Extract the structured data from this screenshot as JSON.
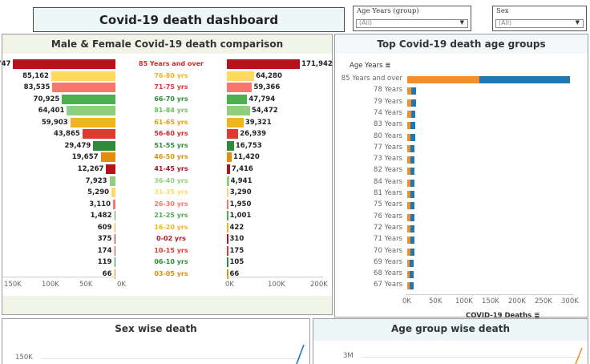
{
  "header": {
    "title": "Covid-19 death dashboard"
  },
  "filters": [
    {
      "label": "Age Years (group)",
      "value": "(All)"
    },
    {
      "label": "Sex",
      "value": "(All)"
    }
  ],
  "comparison": {
    "title": "Male & Female Covid-19 death comparison",
    "rows": [
      {
        "label": "85 Years and over",
        "male": "135,747",
        "female": "171,942",
        "m": 135747,
        "f": 171942,
        "color": "#b5121b"
      },
      {
        "label": "76-80 yrs",
        "male": "85,162",
        "female": "64,280",
        "m": 85162,
        "f": 64280,
        "color": "#ffd966"
      },
      {
        "label": "71-75 yrs",
        "male": "83,535",
        "female": "59,366",
        "m": 83535,
        "f": 59366,
        "color": "#f8766d"
      },
      {
        "label": "66-70 yrs",
        "male": "70,925",
        "female": "47,794",
        "m": 70925,
        "f": 47794,
        "color": "#4caf50"
      },
      {
        "label": "81-84 yrs",
        "male": "64,401",
        "female": "54,472",
        "m": 64401,
        "f": 54472,
        "color": "#8fcf7f"
      },
      {
        "label": "61-65 yrs",
        "male": "59,903",
        "female": "39,321",
        "m": 59903,
        "f": 39321,
        "color": "#f0b322"
      },
      {
        "label": "56-60 yrs",
        "male": "43,865",
        "female": "26,939",
        "m": 43865,
        "f": 26939,
        "color": "#e0392f"
      },
      {
        "label": "51-55 yrs",
        "male": "29,479",
        "female": "16,753",
        "m": 29479,
        "f": 16753,
        "color": "#2e8b3a"
      },
      {
        "label": "46-50 yrs",
        "male": "19,657",
        "female": "11,420",
        "m": 19657,
        "f": 11420,
        "color": "#e08e0b"
      },
      {
        "label": "41-45 yrs",
        "male": "12,267",
        "female": "7,416",
        "m": 12267,
        "f": 7416,
        "color": "#b5121b"
      },
      {
        "label": "36-40 yrs",
        "male": "7,923",
        "female": "4,941",
        "m": 7923,
        "f": 4941,
        "color": "#8fcf7f"
      },
      {
        "label": "31-35 yrs",
        "male": "5,290",
        "female": "3,290",
        "m": 5290,
        "f": 3290,
        "color": "#ffd966"
      },
      {
        "label": "26-30 yrs",
        "male": "3,110",
        "female": "1,950",
        "m": 3110,
        "f": 1950,
        "color": "#f8766d"
      },
      {
        "label": "21-25 yrs",
        "male": "1,482",
        "female": "1,001",
        "m": 1482,
        "f": 1001,
        "color": "#4caf50"
      },
      {
        "label": "16-20 yrs",
        "male": "609",
        "female": "422",
        "m": 609,
        "f": 422,
        "color": "#f0b322"
      },
      {
        "label": "0-02 yrs",
        "male": "375",
        "female": "310",
        "m": 375,
        "f": 310,
        "color": "#b5121b"
      },
      {
        "label": "10-15 yrs",
        "male": "174",
        "female": "175",
        "m": 174,
        "f": 175,
        "color": "#e0392f"
      },
      {
        "label": "06-10 yrs",
        "male": "119",
        "female": "105",
        "m": 119,
        "f": 105,
        "color": "#2e8b3a"
      },
      {
        "label": "03-05 yrs",
        "male": "66",
        "female": "66",
        "m": 66,
        "f": 66,
        "color": "#e08e0b"
      }
    ],
    "left_axis": [
      "150K",
      "100K",
      "50K",
      "0K"
    ],
    "right_axis": [
      "0K",
      "100K",
      "200K"
    ]
  },
  "top_groups": {
    "title": "Top Covid-19 death age groups",
    "y_header": "Age Years",
    "x_label": "COVID-19 Deaths",
    "x_ticks": [
      "0K",
      "50K",
      "100K",
      "150K",
      "200K",
      "250K",
      "300K"
    ],
    "colors": {
      "orange": "#f28e2b",
      "blue": "#1f77b4"
    },
    "rows": [
      {
        "label": "85 Years and over",
        "a": 135747,
        "b": 171942
      },
      {
        "label": "78 Years",
        "a": 7000,
        "b": 9000
      },
      {
        "label": "79 Years",
        "a": 7000,
        "b": 9000
      },
      {
        "label": "74 Years",
        "a": 7000,
        "b": 8000
      },
      {
        "label": "83 Years",
        "a": 6000,
        "b": 9000
      },
      {
        "label": "80 Years",
        "a": 6000,
        "b": 9000
      },
      {
        "label": "77 Years",
        "a": 6000,
        "b": 8000
      },
      {
        "label": "73 Years",
        "a": 6000,
        "b": 8000
      },
      {
        "label": "82 Years",
        "a": 6000,
        "b": 8000
      },
      {
        "label": "84 Years",
        "a": 6000,
        "b": 8000
      },
      {
        "label": "81 Years",
        "a": 6000,
        "b": 8000
      },
      {
        "label": "75 Years",
        "a": 6000,
        "b": 8000
      },
      {
        "label": "76 Years",
        "a": 6000,
        "b": 8000
      },
      {
        "label": "72 Years",
        "a": 6000,
        "b": 8000
      },
      {
        "label": "71 Years",
        "a": 6000,
        "b": 8000
      },
      {
        "label": "70 Years",
        "a": 6000,
        "b": 7000
      },
      {
        "label": "69 Years",
        "a": 5000,
        "b": 7000
      },
      {
        "label": "68 Years",
        "a": 5000,
        "b": 7000
      },
      {
        "label": "67 Years",
        "a": 5000,
        "b": 7000
      }
    ]
  },
  "sex_panel": {
    "title": "Sex wise death",
    "tick": "150K"
  },
  "age_panel": {
    "title": "Age group wise death",
    "tick": "3M"
  }
}
